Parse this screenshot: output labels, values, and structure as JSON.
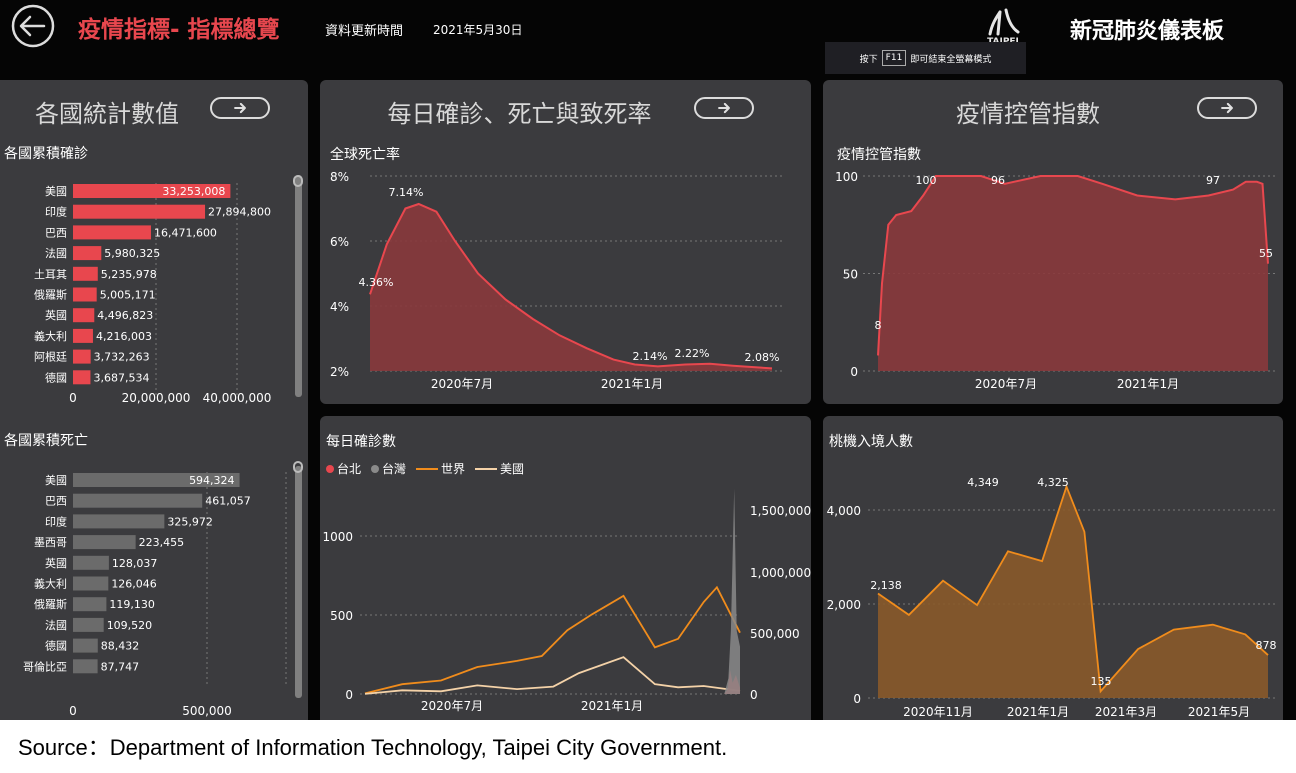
{
  "header": {
    "title": "疫情指標- 指標總覽",
    "update_label": "資料更新時間",
    "update_date": "2021年5月30日",
    "app_title": "新冠肺炎儀表板",
    "logo_text": "TAIPEI",
    "f11_prefix": "按下",
    "f11_key": "F11",
    "f11_suffix": "即可結束全螢幕模式"
  },
  "colors": {
    "accent": "#e8474e",
    "panel": "#3b3b3e",
    "orange": "#f08c1c",
    "gray_bar": "#6b6b6b"
  },
  "panels": {
    "country": {
      "title": "各國統計數值"
    },
    "daily": {
      "title": "每日確診、死亡與致死率"
    },
    "control": {
      "title": "疫情控管指數"
    }
  },
  "source": "Source：Department of Information Technology, Taipei City Government.",
  "chart_data": [
    {
      "type": "bar",
      "title": "各國累積確診",
      "categories": [
        "美國",
        "印度",
        "巴西",
        "法國",
        "土耳其",
        "俄羅斯",
        "英國",
        "義大利",
        "阿根廷",
        "德國"
      ],
      "values": [
        33253008,
        27894800,
        16471600,
        5980325,
        5235978,
        5005171,
        4496823,
        4216003,
        3732263,
        3687534
      ],
      "labels": [
        "33,253,008",
        "27,894,800",
        "16,471,600",
        "5,980,325",
        "5,235,978",
        "5,005,171",
        "4,496,823",
        "4,216,003",
        "3,732,263",
        "3,687,534"
      ],
      "x_ticks": [
        "0",
        "20,000,000",
        "40,000,000"
      ],
      "xlim": [
        0,
        45000000
      ],
      "color": "#e8474e"
    },
    {
      "type": "bar",
      "title": "各國累積死亡",
      "categories": [
        "美國",
        "巴西",
        "印度",
        "墨西哥",
        "英國",
        "義大利",
        "俄羅斯",
        "法國",
        "德國",
        "哥倫比亞"
      ],
      "values": [
        594324,
        461057,
        325972,
        223455,
        128037,
        126046,
        119130,
        109520,
        88432,
        87747
      ],
      "labels": [
        "594,324",
        "461,057",
        "325,972",
        "223,455",
        "128,037",
        "126,046",
        "119,130",
        "109,520",
        "88,432",
        "87,747"
      ],
      "x_ticks": [
        "0",
        "500,000"
      ],
      "xlim": [
        0,
        760000
      ],
      "color": "#6b6b6b"
    },
    {
      "type": "area",
      "title": "全球死亡率",
      "x": [
        "2020-03-01",
        "2020-03-20",
        "2020-04-10",
        "2020-04-25",
        "2020-05-15",
        "2020-06-05",
        "2020-07-01",
        "2020-08-01",
        "2020-09-01",
        "2020-10-01",
        "2020-11-01",
        "2020-12-01",
        "2020-12-25",
        "2021-01-20",
        "2021-02-20",
        "2021-03-20",
        "2021-04-15",
        "2021-05-29"
      ],
      "values": [
        4.36,
        5.9,
        7.0,
        7.14,
        6.9,
        6.0,
        5.0,
        4.2,
        3.6,
        3.1,
        2.7,
        2.35,
        2.2,
        2.14,
        2.2,
        2.22,
        2.16,
        2.08
      ],
      "annotations": [
        "7.14%",
        "4.36%",
        "2.14%",
        "2.22%",
        "2.08%"
      ],
      "y_ticks": [
        "8%",
        "6%",
        "4%",
        "2%"
      ],
      "x_ticks": [
        "2020年7月",
        "2021年1月"
      ],
      "ylim": [
        2,
        8
      ],
      "color": "#e8474e"
    },
    {
      "type": "area",
      "title": "疫情控管指數",
      "x": [
        "2020-01-23",
        "2020-01-28",
        "2020-02-05",
        "2020-02-15",
        "2020-03-05",
        "2020-03-20",
        "2020-04-05",
        "2020-06-01",
        "2020-07-01",
        "2020-08-15",
        "2020-10-01",
        "2020-11-01",
        "2020-12-15",
        "2021-02-01",
        "2021-03-15",
        "2021-04-15",
        "2021-05-01",
        "2021-05-15",
        "2021-05-22",
        "2021-05-29"
      ],
      "values": [
        8,
        45,
        75,
        80,
        82,
        90,
        100,
        100,
        96,
        100,
        100,
        96,
        90,
        88,
        90,
        93,
        97,
        97,
        96,
        55
      ],
      "annotations": [
        "100",
        "96",
        "97",
        "8",
        "55"
      ],
      "y_ticks": [
        "100",
        "50",
        "0"
      ],
      "x_ticks": [
        "2020年7月",
        "2021年1月"
      ],
      "ylim": [
        0,
        100
      ],
      "color": "#e8474e"
    },
    {
      "type": "line",
      "title": "每日確診數",
      "legend": [
        "台北",
        "台灣",
        "世界",
        "美國"
      ],
      "series": [
        {
          "name": "世界",
          "x": [
            "2020-03-01",
            "2020-04-15",
            "2020-06-01",
            "2020-07-15",
            "2020-09-01",
            "2020-10-01",
            "2020-11-01",
            "2020-12-01",
            "2021-01-08",
            "2021-02-15",
            "2021-03-15",
            "2021-04-15",
            "2021-05-01",
            "2021-05-29"
          ],
          "values": [
            5000,
            80000,
            110000,
            220000,
            270000,
            310000,
            520000,
            650000,
            800000,
            380000,
            450000,
            750000,
            870000,
            500000
          ],
          "color": "#f08c1c"
        },
        {
          "name": "美國",
          "x": [
            "2020-03-01",
            "2020-04-15",
            "2020-06-01",
            "2020-07-15",
            "2020-09-01",
            "2020-10-15",
            "2020-11-15",
            "2021-01-08",
            "2021-02-15",
            "2021-03-15",
            "2021-04-15",
            "2021-05-29"
          ],
          "values": [
            1000,
            30000,
            22000,
            70000,
            40000,
            60000,
            170000,
            300000,
            80000,
            55000,
            65000,
            25000
          ],
          "color": "#f4d2a8"
        },
        {
          "name": "台北",
          "x": [
            "2021-05-10",
            "2021-05-14",
            "2021-05-17",
            "2021-05-20",
            "2021-05-24",
            "2021-05-29"
          ],
          "values": [
            0,
            30,
            150,
            70,
            120,
            40
          ],
          "color": "#e8474e"
        },
        {
          "name": "台灣",
          "x": [
            "2021-05-10",
            "2021-05-15",
            "2021-05-18",
            "2021-05-22",
            "2021-05-25",
            "2021-05-29"
          ],
          "values": [
            0,
            100,
            400,
            1300,
            400,
            300
          ],
          "color": "#8a8a8a"
        }
      ],
      "y_left_ticks": [
        "1000",
        "500",
        "0"
      ],
      "y_right_ticks": [
        "1,500,000",
        "1,000,000",
        "500,000",
        "0"
      ],
      "x_ticks": [
        "2020年7月",
        "2021年1月"
      ]
    },
    {
      "type": "area",
      "title": "桃機入境人數",
      "x": [
        "2020-10-01",
        "2020-10-20",
        "2020-11-10",
        "2020-12-01",
        "2020-12-20",
        "2021-01-10",
        "2021-01-25",
        "2021-02-05",
        "2021-02-15",
        "2021-03-10",
        "2021-04-01",
        "2021-04-25",
        "2021-05-15",
        "2021-05-29"
      ],
      "values": [
        2138,
        1700,
        2400,
        1900,
        3000,
        2800,
        4325,
        3400,
        135,
        1000,
        1400,
        1500,
        1300,
        878
      ],
      "annotations": [
        "4,349",
        "4,325",
        "2,138",
        "135",
        "878"
      ],
      "y_ticks": [
        "4,000",
        "2,000",
        "0"
      ],
      "x_ticks": [
        "2020年11月",
        "2021年1月",
        "2021年3月",
        "2021年5月"
      ],
      "ylim": [
        0,
        4500
      ],
      "color": "#f08c1c"
    }
  ]
}
